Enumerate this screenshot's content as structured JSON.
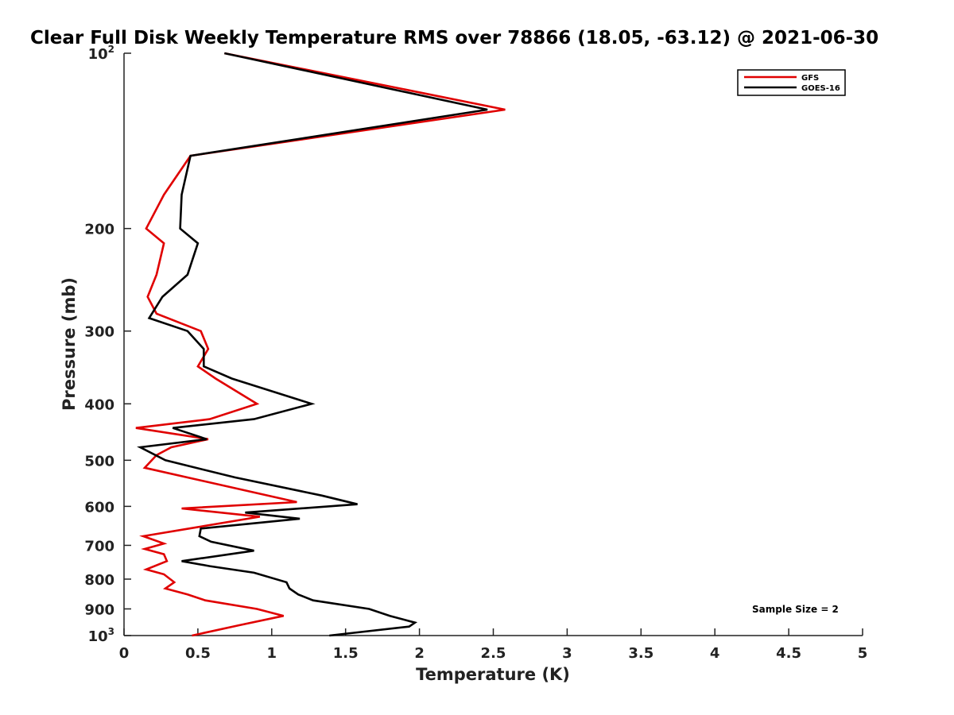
{
  "chart_data": {
    "type": "line",
    "title": "Clear Full Disk Weekly Temperature RMS over 78866 (18.05, -63.12) @ 2021-06-30",
    "xlabel": "Temperature (K)",
    "ylabel": "Pressure (mb)",
    "xlim": [
      0,
      5
    ],
    "ylim": [
      1000,
      100
    ],
    "y_scale": "log",
    "y_reversed": true,
    "grid": false,
    "legend_position": "top-right",
    "x_ticks": [
      "0",
      "0.5",
      "1",
      "1.5",
      "2",
      "2.5",
      "3",
      "3.5",
      "4",
      "4.5",
      "5"
    ],
    "y_ticks": [
      {
        "base": "10",
        "sup": "2",
        "value": 100
      },
      {
        "base": "200",
        "sup": "",
        "value": 200
      },
      {
        "base": "300",
        "sup": "",
        "value": 300
      },
      {
        "base": "400",
        "sup": "",
        "value": 400
      },
      {
        "base": "500",
        "sup": "",
        "value": 500
      },
      {
        "base": "600",
        "sup": "",
        "value": 600
      },
      {
        "base": "700",
        "sup": "",
        "value": 700
      },
      {
        "base": "800",
        "sup": "",
        "value": 800
      },
      {
        "base": "900",
        "sup": "",
        "value": 900
      },
      {
        "base": "10",
        "sup": "3",
        "value": 1000
      }
    ],
    "series": [
      {
        "name": "GFS",
        "color": "#e00000",
        "points": [
          [
            0.68,
            100
          ],
          [
            2.58,
            125
          ],
          [
            0.45,
            150
          ],
          [
            0.27,
            175
          ],
          [
            0.15,
            200
          ],
          [
            0.27,
            212
          ],
          [
            0.22,
            240
          ],
          [
            0.16,
            262
          ],
          [
            0.22,
            280
          ],
          [
            0.52,
            300
          ],
          [
            0.57,
            322
          ],
          [
            0.5,
            345
          ],
          [
            0.62,
            362
          ],
          [
            0.9,
            400
          ],
          [
            0.58,
            425
          ],
          [
            0.08,
            440
          ],
          [
            0.57,
            460
          ],
          [
            0.32,
            475
          ],
          [
            0.22,
            490
          ],
          [
            0.14,
            515
          ],
          [
            1.17,
            590
          ],
          [
            0.39,
            605
          ],
          [
            0.92,
            625
          ],
          [
            0.44,
            655
          ],
          [
            0.13,
            675
          ],
          [
            0.27,
            695
          ],
          [
            0.14,
            710
          ],
          [
            0.27,
            725
          ],
          [
            0.29,
            745
          ],
          [
            0.15,
            770
          ],
          [
            0.27,
            785
          ],
          [
            0.34,
            810
          ],
          [
            0.28,
            830
          ],
          [
            0.43,
            850
          ],
          [
            0.55,
            870
          ],
          [
            0.9,
            900
          ],
          [
            1.08,
            925
          ],
          [
            0.78,
            960
          ],
          [
            0.46,
            1000
          ]
        ]
      },
      {
        "name": "GOES-16",
        "color": "#000000",
        "points": [
          [
            0.68,
            100
          ],
          [
            2.46,
            125
          ],
          [
            0.45,
            150
          ],
          [
            0.39,
            175
          ],
          [
            0.38,
            200
          ],
          [
            0.5,
            212
          ],
          [
            0.43,
            240
          ],
          [
            0.26,
            262
          ],
          [
            0.17,
            285
          ],
          [
            0.43,
            300
          ],
          [
            0.54,
            322
          ],
          [
            0.54,
            345
          ],
          [
            0.73,
            362
          ],
          [
            1.27,
            400
          ],
          [
            0.88,
            425
          ],
          [
            0.33,
            440
          ],
          [
            0.56,
            460
          ],
          [
            0.11,
            475
          ],
          [
            0.28,
            500
          ],
          [
            0.75,
            535
          ],
          [
            1.34,
            575
          ],
          [
            1.58,
            595
          ],
          [
            0.82,
            615
          ],
          [
            1.19,
            630
          ],
          [
            0.52,
            655
          ],
          [
            0.51,
            675
          ],
          [
            0.59,
            690
          ],
          [
            0.88,
            715
          ],
          [
            0.39,
            745
          ],
          [
            0.58,
            760
          ],
          [
            0.88,
            780
          ],
          [
            1.1,
            810
          ],
          [
            1.12,
            830
          ],
          [
            1.18,
            850
          ],
          [
            1.28,
            870
          ],
          [
            1.66,
            900
          ],
          [
            1.8,
            925
          ],
          [
            1.97,
            950
          ],
          [
            1.93,
            965
          ],
          [
            1.39,
            1000
          ]
        ]
      }
    ],
    "annotation": "Sample Size = 2"
  }
}
